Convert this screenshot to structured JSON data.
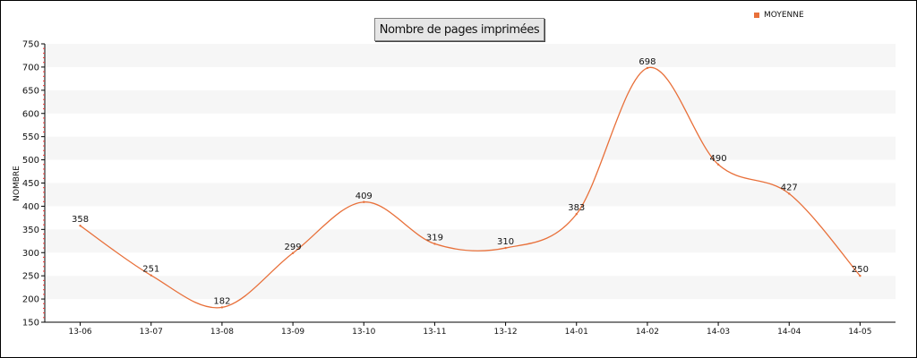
{
  "chart_data": {
    "type": "line",
    "title": "Nombre de pages imprimées",
    "ylabel": "NOMBRE",
    "xlabel": "",
    "categories": [
      "13-06",
      "13-07",
      "13-08",
      "13-09",
      "13-10",
      "13-11",
      "13-12",
      "14-01",
      "14-02",
      "14-03",
      "14-04",
      "14-05"
    ],
    "series": [
      {
        "name": "MOYENNE",
        "values": [
          358,
          251,
          182,
          299,
          409,
          319,
          310,
          383,
          698,
          490,
          427,
          250
        ]
      }
    ],
    "ylim": [
      150,
      750
    ],
    "yticks": [
      150,
      200,
      250,
      300,
      350,
      400,
      450,
      500,
      550,
      600,
      650,
      700,
      750
    ],
    "grid": "alternating-horizontal-bands",
    "legend_position": "top-right",
    "colors": {
      "line": "#e8703a",
      "band": "#f6f6f6",
      "axis": "#000000"
    }
  }
}
